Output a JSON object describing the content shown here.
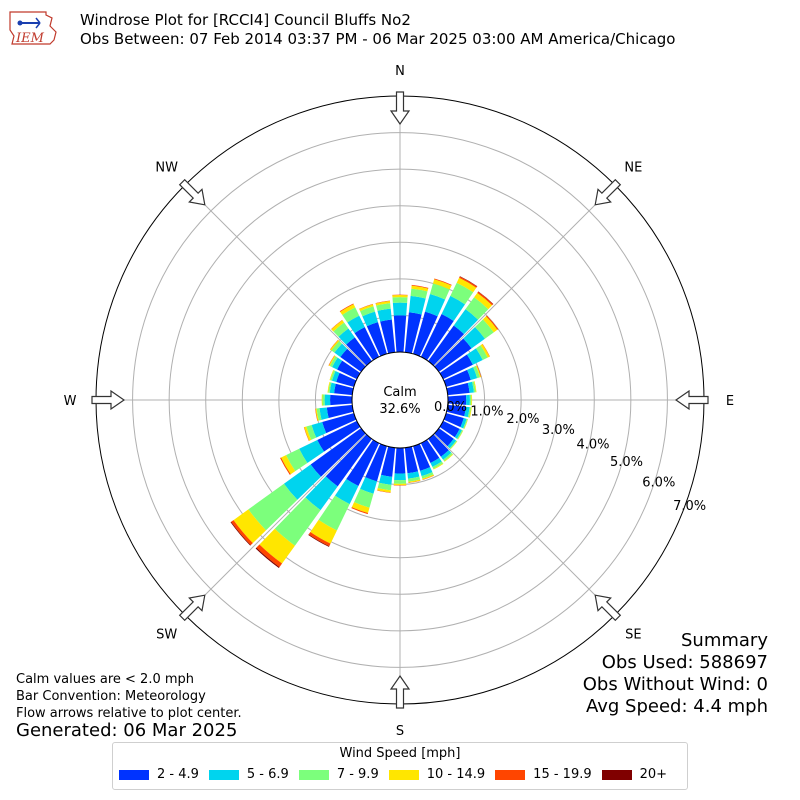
{
  "header": {
    "title_line1": "Windrose Plot for [RCCI4] Council Bluffs No2",
    "title_line2": "Obs Between: 07 Feb 2014 03:37 PM - 06 Mar 2025 03:00 AM America/Chicago",
    "logo_text": "IEM"
  },
  "compass": {
    "n": "N",
    "ne": "NE",
    "e": "E",
    "se": "SE",
    "s": "S",
    "sw": "SW",
    "w": "W",
    "nw": "NW"
  },
  "calm": {
    "label": "Calm",
    "value": "32.6%"
  },
  "notes": {
    "line1": "Calm values are < 2.0 mph",
    "line2": "Bar Convention: Meteorology",
    "line3": "Flow arrows relative to plot center.",
    "generated": "Generated: 06 Mar 2025"
  },
  "summary": {
    "title": "Summary",
    "obs_used": "Obs Used: 588697",
    "obs_without_wind": "Obs Without Wind: 0",
    "avg_speed": "Avg Speed: 4.4 mph"
  },
  "legend": {
    "title": "Wind Speed [mph]",
    "items": [
      {
        "label": "2 - 4.9",
        "color": "#0033ff"
      },
      {
        "label": "5 - 6.9",
        "color": "#00d4ee"
      },
      {
        "label": "7 - 9.9",
        "color": "#7cff7c"
      },
      {
        "label": "10 - 14.9",
        "color": "#ffe600"
      },
      {
        "label": "15 - 19.9",
        "color": "#ff4500"
      },
      {
        "label": "20+",
        "color": "#800000"
      }
    ]
  },
  "chart_data": {
    "type": "windrose",
    "radial_axis": {
      "min": 0.0,
      "max": 7.0,
      "ticks": [
        0.0,
        1.0,
        2.0,
        3.0,
        4.0,
        5.0,
        6.0,
        7.0
      ],
      "tick_labels": [
        "0.0%",
        "1.0%",
        "2.0%",
        "3.0%",
        "4.0%",
        "5.0%",
        "6.0%",
        "7.0%"
      ]
    },
    "direction_step_degrees": 10,
    "directions_deg": [
      0,
      10,
      20,
      30,
      40,
      50,
      60,
      70,
      80,
      90,
      100,
      110,
      120,
      130,
      140,
      150,
      160,
      170,
      180,
      190,
      200,
      210,
      220,
      230,
      240,
      250,
      260,
      270,
      280,
      290,
      300,
      310,
      320,
      330,
      340,
      350
    ],
    "series": [
      {
        "name": "2 - 4.9",
        "values": [
          1.0,
          1.1,
          1.2,
          1.3,
          1.2,
          1.1,
          0.9,
          0.7,
          0.6,
          0.5,
          0.5,
          0.5,
          0.5,
          0.5,
          0.6,
          0.6,
          0.7,
          0.7,
          0.7,
          0.8,
          1.0,
          1.3,
          1.6,
          1.7,
          1.2,
          0.9,
          0.7,
          0.6,
          0.5,
          0.5,
          0.6,
          0.7,
          0.8,
          0.9,
          0.9,
          0.9
        ]
      },
      {
        "name": "5 - 6.9",
        "values": [
          0.35,
          0.45,
          0.5,
          0.55,
          0.55,
          0.45,
          0.3,
          0.18,
          0.12,
          0.1,
          0.1,
          0.08,
          0.07,
          0.08,
          0.1,
          0.12,
          0.15,
          0.15,
          0.18,
          0.22,
          0.35,
          0.55,
          0.8,
          0.9,
          0.55,
          0.3,
          0.2,
          0.15,
          0.12,
          0.12,
          0.15,
          0.2,
          0.3,
          0.35,
          0.3,
          0.3
        ]
      },
      {
        "name": "7 - 9.9",
        "values": [
          0.15,
          0.2,
          0.3,
          0.4,
          0.4,
          0.3,
          0.15,
          0.08,
          0.05,
          0.04,
          0.04,
          0.03,
          0.03,
          0.03,
          0.05,
          0.06,
          0.07,
          0.08,
          0.1,
          0.15,
          0.4,
          0.8,
          1.2,
          1.2,
          0.4,
          0.15,
          0.08,
          0.06,
          0.04,
          0.05,
          0.07,
          0.1,
          0.2,
          0.25,
          0.15,
          0.15
        ]
      },
      {
        "name": "10 - 14.9",
        "values": [
          0.06,
          0.08,
          0.12,
          0.15,
          0.15,
          0.12,
          0.06,
          0.03,
          0.02,
          0.02,
          0.02,
          0.01,
          0.01,
          0.01,
          0.02,
          0.02,
          0.03,
          0.03,
          0.04,
          0.06,
          0.15,
          0.4,
          0.6,
          0.5,
          0.15,
          0.06,
          0.03,
          0.02,
          0.02,
          0.02,
          0.03,
          0.04,
          0.08,
          0.1,
          0.06,
          0.06
        ]
      },
      {
        "name": "15 - 19.9",
        "values": [
          0.01,
          0.02,
          0.02,
          0.04,
          0.04,
          0.03,
          0.01,
          0.01,
          0.0,
          0.0,
          0.0,
          0.0,
          0.0,
          0.0,
          0.0,
          0.0,
          0.01,
          0.01,
          0.01,
          0.01,
          0.03,
          0.08,
          0.12,
          0.08,
          0.03,
          0.01,
          0.01,
          0.0,
          0.0,
          0.0,
          0.01,
          0.01,
          0.01,
          0.02,
          0.01,
          0.01
        ]
      },
      {
        "name": "20+",
        "values": [
          0.0,
          0.0,
          0.0,
          0.01,
          0.01,
          0.0,
          0.0,
          0.0,
          0.0,
          0.0,
          0.0,
          0.0,
          0.0,
          0.0,
          0.0,
          0.0,
          0.0,
          0.0,
          0.0,
          0.0,
          0.0,
          0.02,
          0.03,
          0.02,
          0.0,
          0.0,
          0.0,
          0.0,
          0.0,
          0.0,
          0.0,
          0.0,
          0.0,
          0.0,
          0.0,
          0.0
        ]
      }
    ],
    "grid": true,
    "legend_position": "bottom"
  }
}
